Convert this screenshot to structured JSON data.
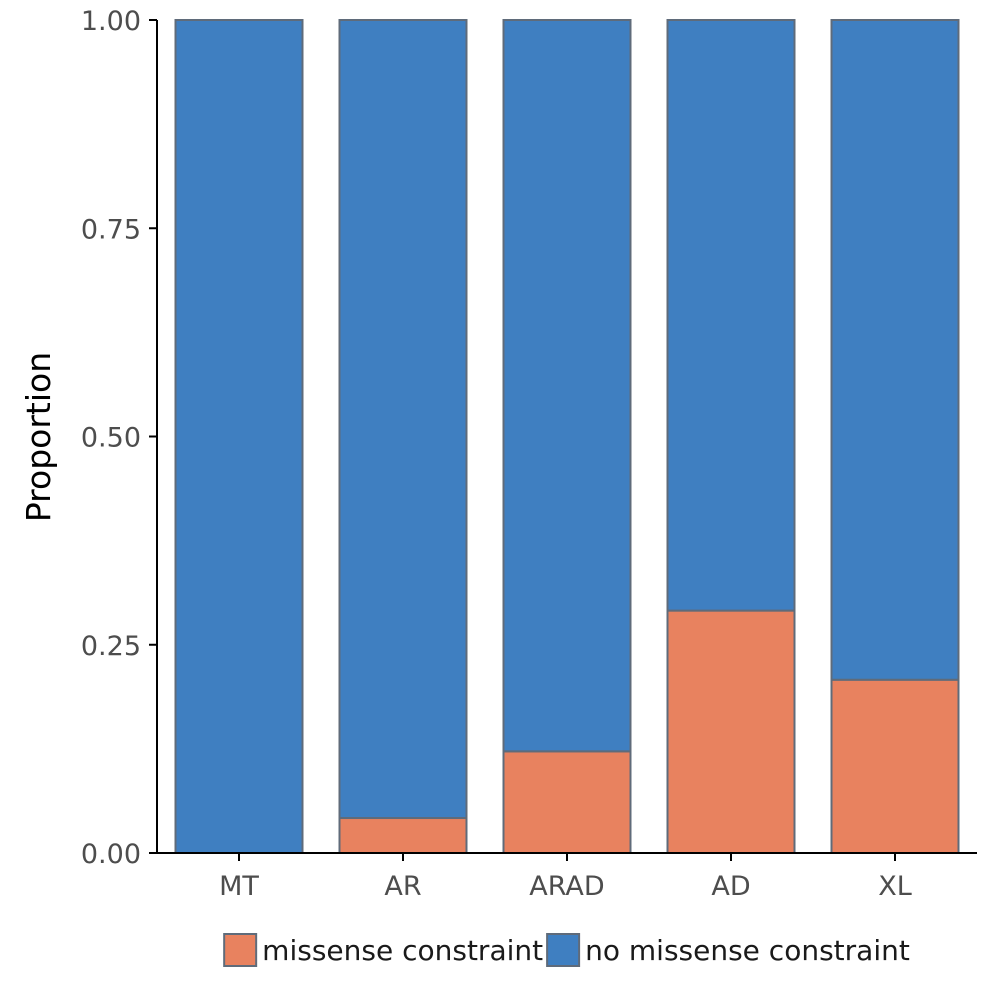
{
  "chart_data": {
    "type": "bar",
    "stacked": true,
    "categories": [
      "MT",
      "AR",
      "ARAD",
      "AD",
      "XL"
    ],
    "series": [
      {
        "name": "missense constraint",
        "values": [
          0.0,
          0.042,
          0.122,
          0.291,
          0.208
        ],
        "color": "#E8825F"
      },
      {
        "name": "no missense constraint",
        "values": [
          1.0,
          0.958,
          0.878,
          0.709,
          0.792
        ],
        "color": "#3F7FC1"
      }
    ],
    "ylabel": "Proportion",
    "ylim": [
      0,
      1
    ],
    "yticks": [
      "0.00",
      "0.25",
      "0.50",
      "0.75",
      "1.00"
    ],
    "grid": false,
    "legend_position": "bottom",
    "bar_outline_color": "#5F6B7A",
    "axis_color": "#000000"
  }
}
